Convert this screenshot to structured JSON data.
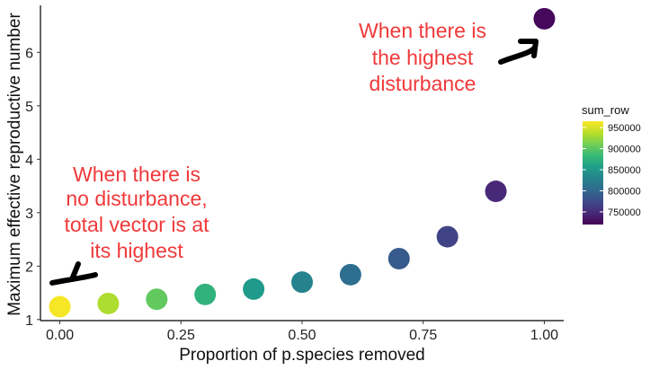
{
  "chart_data": {
    "type": "scatter",
    "xlabel": "Proportion of p.species removed",
    "ylabel": "Maximum effective reproductive number",
    "xlim": [
      -0.04,
      1.04
    ],
    "ylim": [
      0.98,
      6.88
    ],
    "x_ticks": [
      0.0,
      0.25,
      0.5,
      0.75,
      1.0
    ],
    "x_tick_labels": [
      "0.00",
      "0.25",
      "0.50",
      "0.75",
      "1.00"
    ],
    "y_ticks": [
      1,
      2,
      3,
      4,
      5,
      6
    ],
    "y_tick_labels": [
      "1",
      "2",
      "3",
      "4",
      "5",
      "6"
    ],
    "grid": false,
    "points": [
      {
        "x": 0.0,
        "y": 1.24,
        "sum_row": 962000
      },
      {
        "x": 0.1,
        "y": 1.3,
        "sum_row": 935000
      },
      {
        "x": 0.2,
        "y": 1.38,
        "sum_row": 905000
      },
      {
        "x": 0.3,
        "y": 1.47,
        "sum_row": 878000
      },
      {
        "x": 0.4,
        "y": 1.57,
        "sum_row": 852000
      },
      {
        "x": 0.5,
        "y": 1.7,
        "sum_row": 830000
      },
      {
        "x": 0.6,
        "y": 1.84,
        "sum_row": 808000
      },
      {
        "x": 0.7,
        "y": 2.14,
        "sum_row": 790000
      },
      {
        "x": 0.8,
        "y": 2.55,
        "sum_row": 770000
      },
      {
        "x": 0.9,
        "y": 3.4,
        "sum_row": 748000
      },
      {
        "x": 1.0,
        "y": 6.63,
        "sum_row": 725000
      }
    ],
    "legend": {
      "title": "sum_row",
      "placement": "right",
      "range": [
        720000,
        965000
      ],
      "tick_values": [
        950000,
        900000,
        850000,
        800000,
        750000
      ],
      "tick_labels": [
        "950000",
        "900000",
        "850000",
        "800000",
        "750000"
      ],
      "colors": [
        "#440154",
        "#482878",
        "#3e4989",
        "#31688e",
        "#26828e",
        "#1f9e89",
        "#35b779",
        "#6ece58",
        "#b5de2b",
        "#fde725"
      ]
    },
    "annotations": [
      {
        "lines": [
          "When there is",
          "the highest",
          "disturbance"
        ],
        "color": "#f0393a"
      },
      {
        "lines": [
          "When there is",
          "no disturbance,",
          "total vector is at",
          "its highest"
        ],
        "color": "#f0393a"
      }
    ]
  }
}
